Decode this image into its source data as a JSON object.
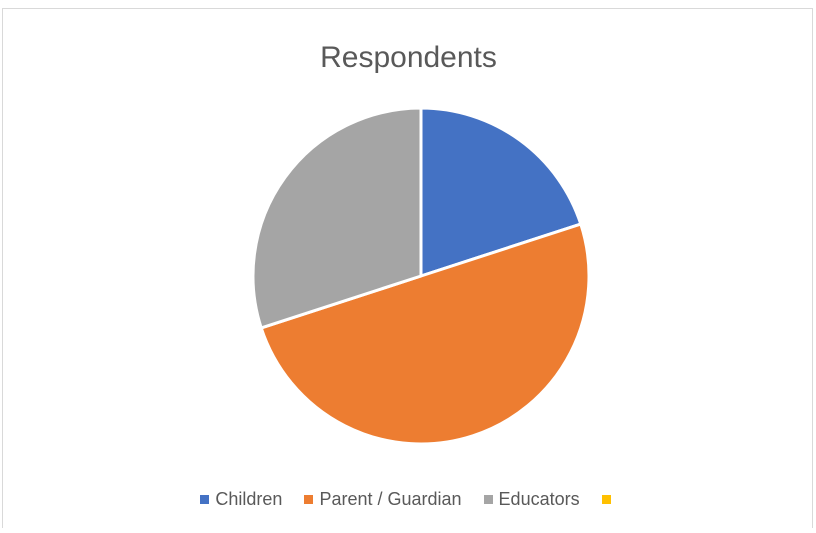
{
  "chart_data": {
    "type": "pie",
    "title": "Respondents",
    "categories": [
      "Children",
      "Parent / Guardian",
      "Educators",
      ""
    ],
    "values": [
      20,
      50,
      30,
      0
    ],
    "colors": [
      "#4472c4",
      "#ed7d31",
      "#a5a5a5",
      "#ffc000"
    ],
    "legend": "bottom"
  }
}
